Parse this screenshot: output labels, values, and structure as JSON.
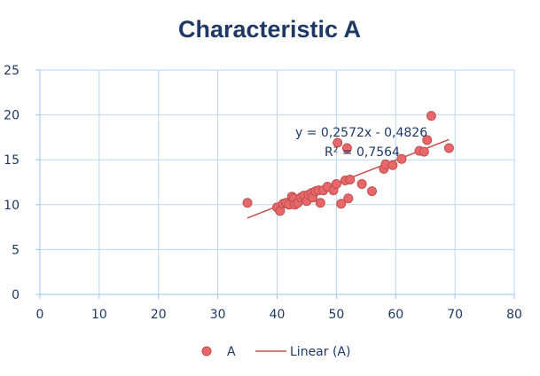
{
  "chart_data": {
    "type": "scatter",
    "title": "Characteristic A",
    "xlabel": "",
    "ylabel": "",
    "xlim": [
      0,
      80
    ],
    "ylim": [
      0,
      25
    ],
    "x_ticks": [
      "0",
      "10",
      "20",
      "30",
      "40",
      "50",
      "60",
      "70",
      "80"
    ],
    "y_ticks": [
      "0",
      "5",
      "10",
      "15",
      "20",
      "25"
    ],
    "grid": true,
    "legend_position": "bottom",
    "series": [
      {
        "name": "A",
        "color": "#e8676b",
        "points": [
          [
            35,
            10.2
          ],
          [
            40,
            9.7
          ],
          [
            40.5,
            9.3
          ],
          [
            41,
            10.1
          ],
          [
            41.5,
            10.2
          ],
          [
            42,
            10.0
          ],
          [
            42.5,
            10.9
          ],
          [
            42.8,
            10.7
          ],
          [
            43,
            10.0
          ],
          [
            43.5,
            10.2
          ],
          [
            44,
            10.8
          ],
          [
            44.5,
            11.0
          ],
          [
            45,
            10.4
          ],
          [
            45.3,
            11.1
          ],
          [
            45.8,
            11.3
          ],
          [
            46,
            10.8
          ],
          [
            46.5,
            11.5
          ],
          [
            47,
            11.6
          ],
          [
            47.3,
            10.2
          ],
          [
            47.8,
            11.6
          ],
          [
            48.5,
            12.0
          ],
          [
            49.5,
            11.6
          ],
          [
            50,
            12.3
          ],
          [
            50.2,
            16.9
          ],
          [
            50.8,
            10.1
          ],
          [
            51.5,
            12.7
          ],
          [
            51.8,
            16.3
          ],
          [
            52,
            10.7
          ],
          [
            52.3,
            12.8
          ],
          [
            54.3,
            12.3
          ],
          [
            56,
            11.5
          ],
          [
            58,
            14.0
          ],
          [
            58.3,
            14.5
          ],
          [
            59.5,
            14.4
          ],
          [
            61,
            15.1
          ],
          [
            64,
            16.0
          ],
          [
            64.8,
            15.9
          ],
          [
            65.3,
            17.2
          ],
          [
            66,
            19.9
          ],
          [
            69,
            16.3
          ]
        ]
      }
    ],
    "trendline": {
      "name": "Linear (A)",
      "color": "#c0504d",
      "slope": 0.2572,
      "intercept": -0.4826,
      "x_range": [
        35,
        69
      ],
      "equation": "y = 0,2572x - 0,4826",
      "r_squared": "R² = 0,7564"
    }
  },
  "legend": {
    "series_label": "A",
    "trend_label": "Linear (A)"
  }
}
